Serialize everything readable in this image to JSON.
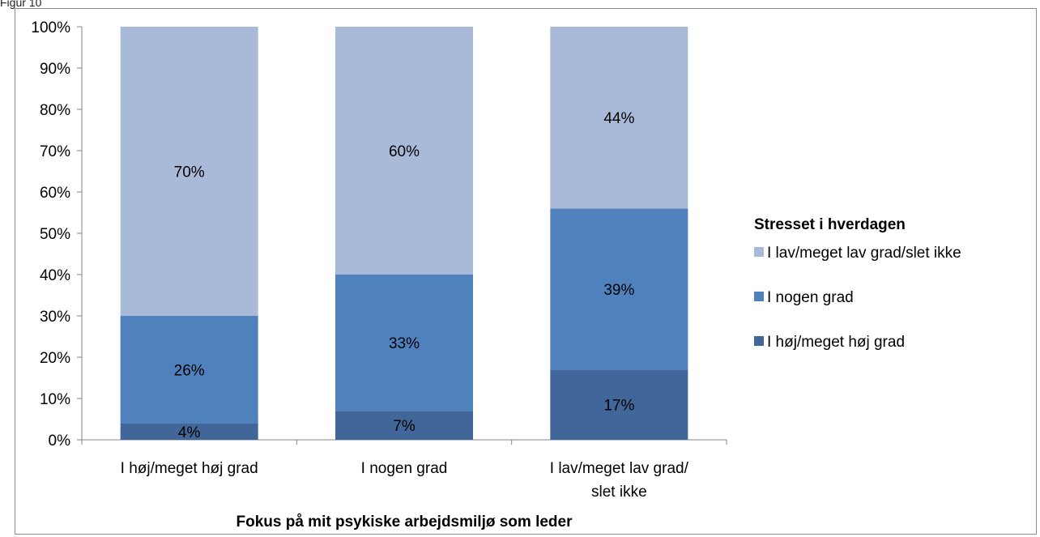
{
  "page_label": "Figur 10",
  "chart_data": {
    "type": "bar",
    "stacked": true,
    "percent": true,
    "categories": [
      [
        "I høj/meget høj grad"
      ],
      [
        "I nogen grad"
      ],
      [
        "I lav/meget lav grad/",
        "slet ikke"
      ]
    ],
    "series": [
      {
        "name": "I høj/meget høj grad",
        "color": "#41679a",
        "values": [
          4,
          7,
          17
        ]
      },
      {
        "name": "I nogen grad",
        "color": "#4f81bd",
        "values": [
          26,
          33,
          39
        ]
      },
      {
        "name": "I lav/meget lav grad/slet ikke",
        "color": "#a9bad8",
        "values": [
          70,
          60,
          44
        ]
      }
    ],
    "data_labels": [
      [
        "4%",
        "7%",
        "17%"
      ],
      [
        "26%",
        "33%",
        "39%"
      ],
      [
        "70%",
        "60%",
        "44%"
      ]
    ],
    "legend_title": "Stresset i hverdagen",
    "legend_placement": "right",
    "xlabel": "Fokus på mit psykiske arbejdsmiljø som leder",
    "ylabel": "",
    "ylim": [
      0,
      100
    ],
    "yticks": [
      "0%",
      "10%",
      "20%",
      "30%",
      "40%",
      "50%",
      "60%",
      "70%",
      "80%",
      "90%",
      "100%"
    ],
    "grid": false
  }
}
